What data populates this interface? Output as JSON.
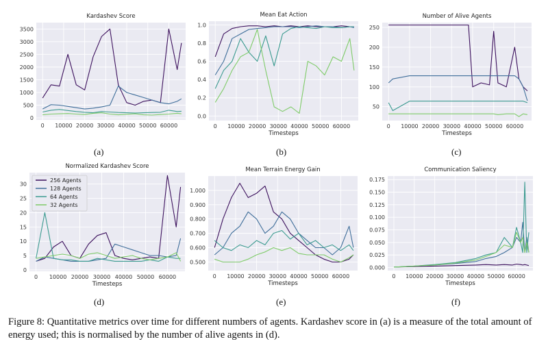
{
  "caption": {
    "label": "Figure 8:",
    "text": "Quantitative metrics over time for different numbers of agents. Kardashev score in (a) is a measure of the total amount of energy used; this is normalised by the number of alive agents in (d)."
  },
  "subcaptions": [
    "(a)",
    "(b)",
    "(c)",
    "(d)",
    "(e)",
    "(f)"
  ],
  "colors": {
    "256 Agents": "#3b0f5c",
    "128 Agents": "#3f6e9a",
    "64 Agents": "#3a9a8f",
    "32 Agents": "#7ecb68",
    "panel_bg": "#eaeaf2",
    "grid": "#ffffff"
  },
  "legend": {
    "placement": "upper-left",
    "panel": "d",
    "entries": [
      "256 Agents",
      "128 Agents",
      "64 Agents",
      "32 Agents"
    ]
  },
  "chart_data": [
    {
      "panel": "a",
      "type": "line",
      "title": "Kardashev Score",
      "xlabel": "",
      "ylabel": "",
      "xlim": [
        -3000,
        68000
      ],
      "ylim": [
        -80,
        3750
      ],
      "grid": true,
      "xticks": [
        0,
        10000,
        20000,
        30000,
        40000,
        50000,
        60000
      ],
      "yticks": [
        0,
        500,
        1000,
        1500,
        2000,
        2500,
        3000,
        3500
      ],
      "x": [
        0,
        4000,
        8000,
        12000,
        16000,
        20000,
        24000,
        28000,
        32000,
        36000,
        40000,
        44000,
        48000,
        52000,
        56000,
        60000,
        64000,
        66000
      ],
      "series": [
        {
          "name": "256 Agents",
          "values": [
            780,
            1300,
            1250,
            2500,
            1300,
            1100,
            2400,
            3200,
            3500,
            1300,
            600,
            500,
            650,
            700,
            600,
            3500,
            1900,
            2950
          ]
        },
        {
          "name": "128 Agents",
          "values": [
            350,
            520,
            500,
            450,
            400,
            350,
            380,
            430,
            500,
            1250,
            1000,
            900,
            800,
            700,
            600,
            550,
            650,
            750
          ]
        },
        {
          "name": "64 Agents",
          "values": [
            230,
            300,
            330,
            290,
            250,
            220,
            200,
            250,
            230,
            210,
            200,
            190,
            200,
            210,
            220,
            300,
            250,
            260
          ]
        },
        {
          "name": "32 Agents",
          "values": [
            120,
            150,
            160,
            170,
            150,
            130,
            180,
            200,
            150,
            120,
            140,
            160,
            120,
            110,
            130,
            150,
            180,
            160
          ]
        }
      ]
    },
    {
      "panel": "b",
      "type": "line",
      "title": "Mean Eat Action",
      "xlabel": "Timesteps",
      "ylabel": "",
      "xlim": [
        -3000,
        68000
      ],
      "ylim": [
        -0.05,
        1.04
      ],
      "grid": true,
      "xticks": [
        0,
        10000,
        20000,
        30000,
        40000,
        50000,
        60000
      ],
      "yticks": [
        0.0,
        0.2,
        0.4,
        0.6,
        0.8,
        1.0
      ],
      "x": [
        0,
        4000,
        8000,
        12000,
        16000,
        20000,
        24000,
        28000,
        32000,
        36000,
        40000,
        44000,
        48000,
        52000,
        56000,
        60000,
        64000,
        66000
      ],
      "series": [
        {
          "name": "256 Agents",
          "values": [
            0.65,
            0.9,
            0.96,
            0.98,
            0.99,
            0.99,
            0.98,
            0.99,
            0.98,
            0.99,
            0.98,
            0.99,
            0.98,
            0.98,
            0.98,
            0.99,
            0.98,
            0.98
          ]
        },
        {
          "name": "128 Agents",
          "values": [
            0.45,
            0.6,
            0.85,
            0.9,
            0.95,
            0.96,
            0.97,
            0.98,
            0.98,
            0.98,
            0.97,
            0.98,
            0.99,
            0.98,
            0.98,
            0.97,
            0.98,
            0.97
          ]
        },
        {
          "name": "64 Agents",
          "values": [
            0.3,
            0.5,
            0.6,
            0.85,
            0.7,
            0.6,
            0.88,
            0.55,
            0.9,
            0.96,
            0.98,
            0.97,
            0.96,
            0.98,
            0.97,
            0.97,
            0.98,
            0.98
          ]
        },
        {
          "name": "32 Agents",
          "values": [
            0.15,
            0.3,
            0.5,
            0.65,
            0.7,
            0.95,
            0.5,
            0.1,
            0.05,
            0.1,
            0.03,
            0.6,
            0.55,
            0.45,
            0.65,
            0.6,
            0.85,
            0.5
          ]
        }
      ]
    },
    {
      "panel": "c",
      "type": "line",
      "title": "Number of Alive Agents",
      "xlabel": "Timesteps",
      "ylabel": "",
      "xlim": [
        -3000,
        68000
      ],
      "ylim": [
        15,
        262
      ],
      "grid": true,
      "xticks": [
        0,
        10000,
        20000,
        30000,
        40000,
        50000,
        60000
      ],
      "yticks": [
        50,
        100,
        150,
        200,
        250
      ],
      "x": [
        0,
        2000,
        10000,
        20000,
        30000,
        36000,
        38000,
        40000,
        44000,
        48000,
        50000,
        52000,
        56000,
        60000,
        62000,
        64000,
        66000
      ],
      "series": [
        {
          "name": "256 Agents",
          "values": [
            256,
            256,
            256,
            256,
            256,
            256,
            256,
            100,
            110,
            105,
            240,
            110,
            100,
            200,
            120,
            100,
            90
          ]
        },
        {
          "name": "128 Agents",
          "values": [
            110,
            120,
            128,
            128,
            128,
            128,
            128,
            128,
            128,
            128,
            128,
            128,
            128,
            128,
            120,
            100,
            65
          ]
        },
        {
          "name": "64 Agents",
          "values": [
            60,
            40,
            64,
            64,
            64,
            64,
            64,
            64,
            64,
            64,
            64,
            64,
            64,
            64,
            64,
            64,
            60
          ]
        },
        {
          "name": "32 Agents",
          "values": [
            32,
            32,
            32,
            32,
            32,
            32,
            32,
            32,
            32,
            32,
            32,
            30,
            32,
            32,
            25,
            32,
            30
          ]
        }
      ]
    },
    {
      "panel": "d",
      "type": "line",
      "title": "Normalized Kardashev Score",
      "xlabel": "Timesteps",
      "ylabel": "",
      "xlim": [
        -3000,
        68000
      ],
      "ylim": [
        -0.5,
        34
      ],
      "grid": true,
      "xticks": [
        0,
        10000,
        20000,
        30000,
        40000,
        50000,
        60000
      ],
      "yticks": [
        0,
        5,
        10,
        15,
        20,
        25,
        30
      ],
      "x": [
        0,
        4000,
        8000,
        12000,
        16000,
        20000,
        24000,
        28000,
        32000,
        36000,
        40000,
        44000,
        48000,
        52000,
        56000,
        60000,
        64000,
        66000
      ],
      "series": [
        {
          "name": "256 Agents",
          "values": [
            3,
            4,
            8,
            10,
            5,
            4,
            9,
            12,
            13,
            5,
            4,
            3.5,
            4,
            4.5,
            4,
            33,
            15,
            29
          ]
        },
        {
          "name": "128 Agents",
          "values": [
            3,
            4.5,
            4,
            3.5,
            3,
            3,
            3,
            3.5,
            4,
            9,
            8,
            7,
            6,
            5,
            5,
            4.5,
            5,
            11
          ]
        },
        {
          "name": "64 Agents",
          "values": [
            4,
            20,
            4,
            3.5,
            3.5,
            3,
            3,
            4,
            3.5,
            3,
            3,
            3,
            3,
            3.5,
            3,
            4.5,
            4,
            4
          ]
        },
        {
          "name": "32 Agents",
          "values": [
            4,
            4.5,
            5,
            5.5,
            5,
            4,
            5.5,
            6,
            5,
            4,
            4.5,
            5,
            4,
            3.5,
            4,
            4.5,
            6,
            3
          ]
        }
      ]
    },
    {
      "panel": "e",
      "type": "line",
      "title": "Mean Terrain Energy Gain",
      "xlabel": "Timesteps",
      "ylabel": "",
      "xlim": [
        -3000,
        68000
      ],
      "ylim": [
        0.44,
        1.1
      ],
      "grid": true,
      "xticks": [
        0,
        10000,
        20000,
        30000,
        40000,
        50000,
        60000
      ],
      "yticks": [
        0.5,
        0.6,
        0.7,
        0.8,
        0.9,
        1.0
      ],
      "x": [
        0,
        4000,
        8000,
        12000,
        16000,
        20000,
        24000,
        28000,
        32000,
        36000,
        40000,
        44000,
        48000,
        52000,
        56000,
        60000,
        64000,
        66000
      ],
      "series": [
        {
          "name": "256 Agents",
          "values": [
            0.6,
            0.8,
            0.95,
            1.05,
            0.95,
            0.98,
            1.03,
            0.85,
            0.8,
            0.7,
            0.65,
            0.6,
            0.55,
            0.52,
            0.5,
            0.5,
            0.52,
            0.55
          ]
        },
        {
          "name": "128 Agents",
          "values": [
            0.55,
            0.6,
            0.7,
            0.75,
            0.85,
            0.8,
            0.7,
            0.75,
            0.85,
            0.8,
            0.7,
            0.65,
            0.6,
            0.6,
            0.55,
            0.6,
            0.75,
            0.6
          ]
        },
        {
          "name": "64 Agents",
          "values": [
            0.65,
            0.6,
            0.58,
            0.62,
            0.6,
            0.65,
            0.62,
            0.7,
            0.72,
            0.66,
            0.7,
            0.62,
            0.65,
            0.6,
            0.62,
            0.58,
            0.62,
            0.58
          ]
        },
        {
          "name": "32 Agents",
          "values": [
            0.52,
            0.5,
            0.5,
            0.5,
            0.52,
            0.55,
            0.57,
            0.6,
            0.58,
            0.6,
            0.56,
            0.55,
            0.55,
            0.55,
            0.52,
            0.5,
            0.53,
            0.55
          ]
        }
      ]
    },
    {
      "panel": "f",
      "type": "line",
      "title": "Communication Saliency",
      "xlabel": "Timesteps",
      "ylabel": "",
      "xlim": [
        -3000,
        68000
      ],
      "ylim": [
        -0.006,
        0.182
      ],
      "grid": true,
      "xticks": [
        0,
        10000,
        20000,
        30000,
        40000,
        50000,
        60000
      ],
      "yticks": [
        0.0,
        0.025,
        0.05,
        0.075,
        0.1,
        0.125,
        0.15,
        0.175
      ],
      "x": [
        0,
        10000,
        20000,
        30000,
        40000,
        45000,
        50000,
        54000,
        58000,
        60000,
        62000,
        63000,
        64000,
        65000,
        66000
      ],
      "series": [
        {
          "name": "256 Agents",
          "values": [
            0.001,
            0.002,
            0.003,
            0.004,
            0.005,
            0.006,
            0.005,
            0.006,
            0.005,
            0.007,
            0.006,
            0.005,
            0.006,
            0.005,
            0.004
          ]
        },
        {
          "name": "128 Agents",
          "values": [
            0.001,
            0.003,
            0.005,
            0.008,
            0.012,
            0.018,
            0.022,
            0.03,
            0.04,
            0.06,
            0.05,
            0.09,
            0.03,
            0.06,
            0.03
          ]
        },
        {
          "name": "64 Agents",
          "values": [
            0.001,
            0.003,
            0.006,
            0.01,
            0.018,
            0.025,
            0.03,
            0.06,
            0.04,
            0.08,
            0.05,
            0.03,
            0.17,
            0.03,
            0.07
          ]
        },
        {
          "name": "32 Agents",
          "values": [
            0.001,
            0.003,
            0.005,
            0.009,
            0.015,
            0.022,
            0.03,
            0.045,
            0.04,
            0.07,
            0.05,
            0.06,
            0.03,
            0.05,
            0.03
          ]
        }
      ]
    }
  ]
}
